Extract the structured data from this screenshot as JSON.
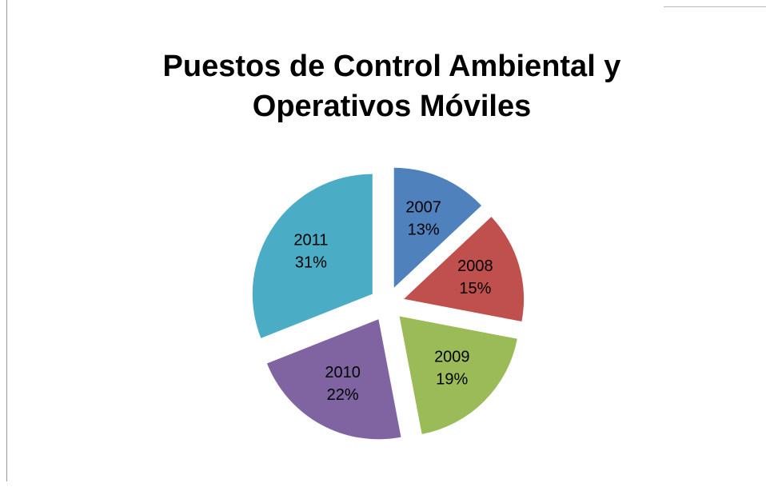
{
  "chart_data": {
    "type": "pie",
    "title": "Puestos de Control Ambiental y Operativos Móviles",
    "categories": [
      "2007",
      "2008",
      "2009",
      "2010",
      "2011"
    ],
    "values": [
      13,
      15,
      19,
      22,
      31
    ],
    "value_labels": [
      "13%",
      "15%",
      "19%",
      "22%",
      "31%"
    ],
    "colors": [
      "#4f81bd",
      "#c0504d",
      "#9bbb59",
      "#8064a2",
      "#4bacc6"
    ]
  }
}
